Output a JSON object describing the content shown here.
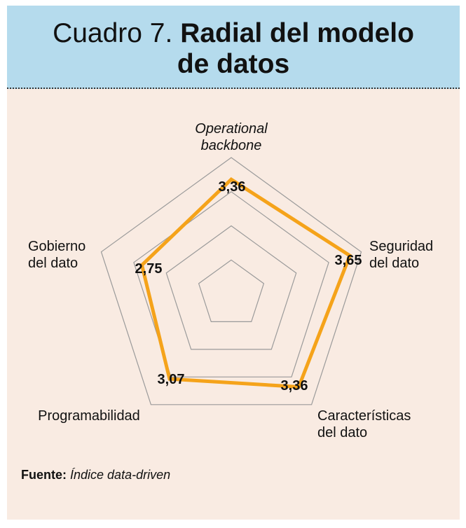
{
  "header": {
    "title_prefix": "Cuadro 7.",
    "title_line1": "Radial del modelo",
    "title_line2": "de datos"
  },
  "colors": {
    "header_bg": "#b5dbed",
    "panel_bg": "#f9ebe2",
    "series": "#f5a31a",
    "grid": "#9a9a9a"
  },
  "chart_data": {
    "type": "radar",
    "axes": [
      "Operational backbone",
      "Seguridad del dato",
      "Características del dato",
      "Programabilidad",
      "Gobierno del dato"
    ],
    "axis_labels": [
      [
        "Operational",
        "backbone"
      ],
      [
        "Seguridad",
        "del dato"
      ],
      [
        "Características",
        "del dato"
      ],
      [
        "Programabilidad"
      ],
      [
        "Gobierno",
        "del dato"
      ]
    ],
    "values": [
      3.36,
      3.65,
      3.36,
      3.07,
      2.75
    ],
    "value_labels": [
      "3,36",
      "3,65",
      "3,36",
      "3,07",
      "2,75"
    ],
    "rings": [
      1,
      2,
      3,
      4
    ],
    "rmax": 4,
    "grid": true
  },
  "source": {
    "label": "Fuente:",
    "text": "Índice data-driven"
  }
}
